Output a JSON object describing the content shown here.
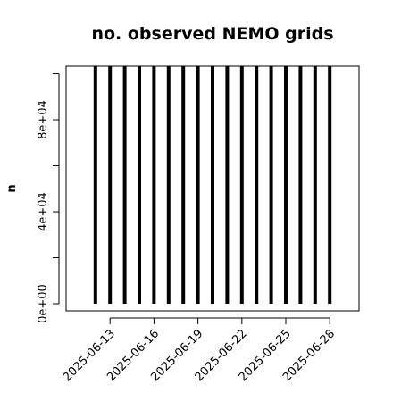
{
  "chart_data": {
    "type": "spike",
    "title": "no. observed NEMO grids",
    "y_label": "n",
    "x": [
      "2025-06-12",
      "2025-06-13",
      "2025-06-14",
      "2025-06-15",
      "2025-06-16",
      "2025-06-17",
      "2025-06-18",
      "2025-06-19",
      "2025-06-20",
      "2025-06-21",
      "2025-06-22",
      "2025-06-23",
      "2025-06-24",
      "2025-06-25",
      "2025-06-26",
      "2025-06-27",
      "2025-06-28"
    ],
    "values": [
      103300,
      103300,
      103300,
      103300,
      103300,
      103300,
      103300,
      103300,
      103300,
      103300,
      103300,
      103300,
      103300,
      103300,
      103300,
      103300,
      103300
    ],
    "color": "#000000",
    "xlim": [
      "2025-06-10",
      "2025-06-30"
    ],
    "xticks": [
      "2025-06-13",
      "2025-06-16",
      "2025-06-19",
      "2025-06-22",
      "2025-06-25",
      "2025-06-28"
    ],
    "ylim": [
      -3100,
      103300
    ],
    "yticks": [
      {
        "value": 0,
        "label": "0e+00"
      },
      {
        "value": 40000,
        "label": "4e+04"
      },
      {
        "value": 80000,
        "label": "8e+04"
      }
    ],
    "yminor_ticks": [
      20000,
      60000,
      100000
    ]
  }
}
